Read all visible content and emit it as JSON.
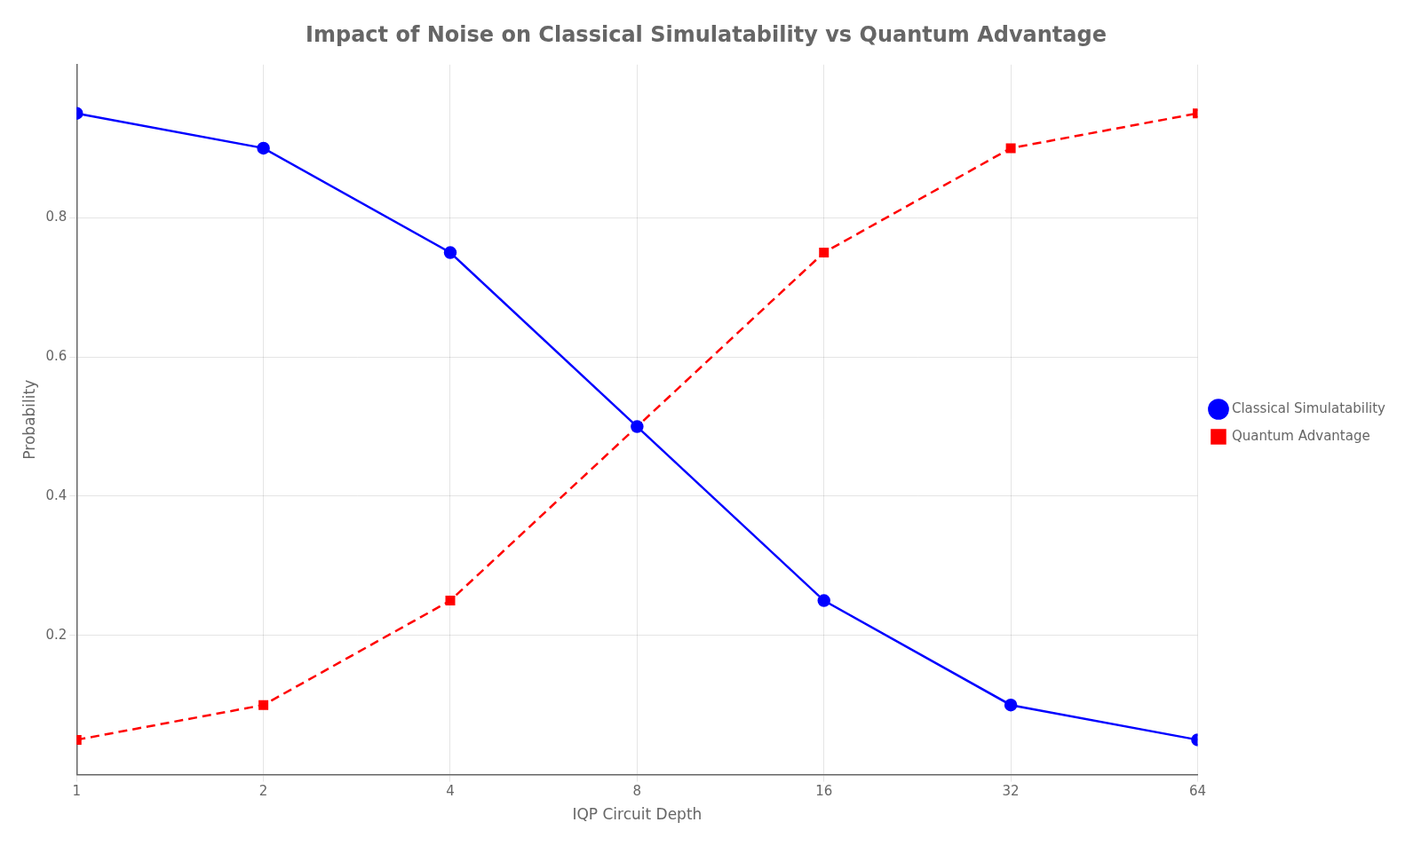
{
  "chart_data": {
    "type": "line",
    "title": "Impact of Noise on Classical Simulatability vs Quantum Advantage",
    "xlabel": "IQP Circuit Depth",
    "ylabel": "Probability",
    "x": [
      1,
      2,
      4,
      8,
      16,
      32,
      64
    ],
    "series": [
      {
        "name": "Classical Simulatability",
        "color": "#0000ff",
        "marker": "circle",
        "line_style": "solid",
        "values": [
          0.95,
          0.9,
          0.75,
          0.5,
          0.25,
          0.1,
          0.05
        ]
      },
      {
        "name": "Quantum Advantage",
        "color": "#ff0000",
        "marker": "square",
        "line_style": "dashed",
        "values": [
          0.05,
          0.1,
          0.25,
          0.5,
          0.75,
          0.9,
          0.95
        ]
      }
    ],
    "log": "x",
    "xlim": [
      1,
      64
    ],
    "xticks": [
      1,
      2,
      4,
      8,
      16,
      32,
      64
    ],
    "ylim": [
      0.0,
      1.02
    ],
    "yticks": [
      0.2,
      0.4,
      0.6,
      0.8
    ],
    "grid": true,
    "legend": "center right"
  }
}
